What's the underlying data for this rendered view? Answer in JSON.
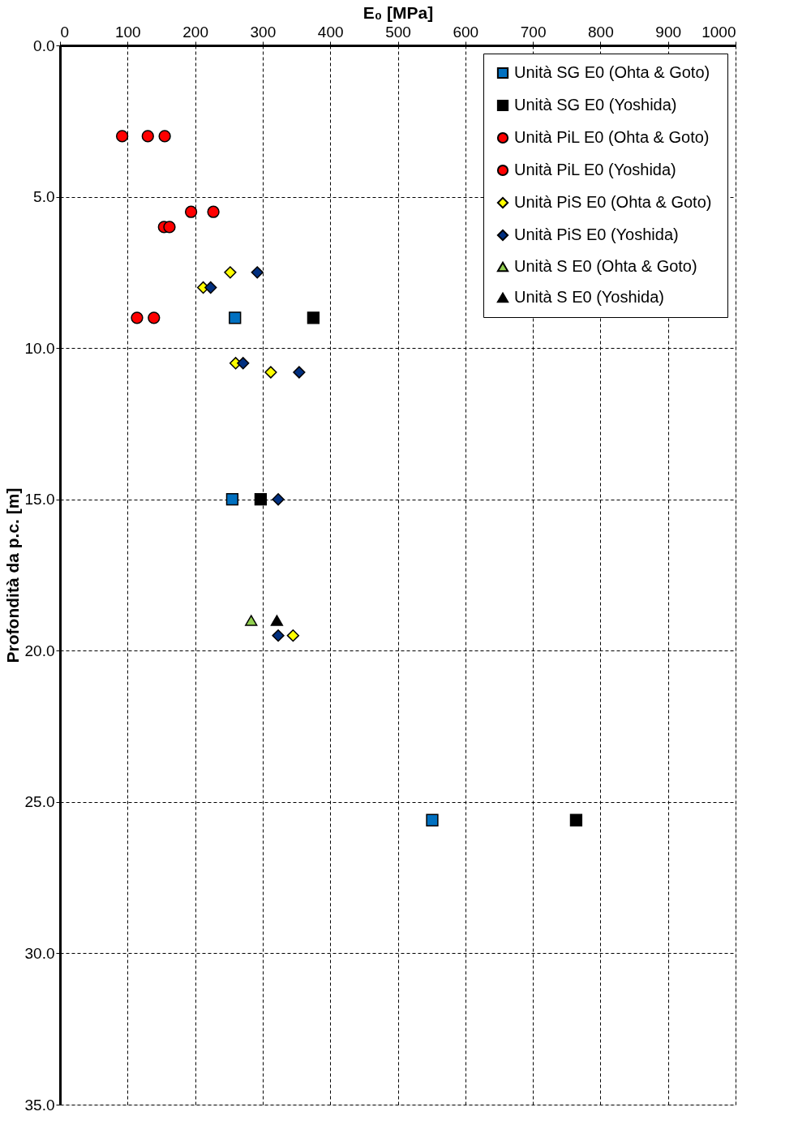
{
  "chart_data": {
    "type": "scatter",
    "xlabel": "E₀ [MPa]",
    "ylabel": "Profondità da p.c. [m]",
    "xlim": [
      0,
      1000
    ],
    "xticks": [
      0,
      100,
      200,
      300,
      400,
      500,
      600,
      700,
      800,
      900,
      1000
    ],
    "ylim": [
      35,
      0
    ],
    "yticks": [
      {
        "value": 0,
        "label": "0.0"
      },
      {
        "value": 5,
        "label": "5.0"
      },
      {
        "value": 10,
        "label": "10.0"
      },
      {
        "value": 15,
        "label": "15.0"
      },
      {
        "value": 20,
        "label": "20.0"
      },
      {
        "value": 25,
        "label": "25.0"
      },
      {
        "value": 30,
        "label": "30.0"
      },
      {
        "value": 35,
        "label": "35.0"
      }
    ],
    "grid": true,
    "legend": "top right",
    "series": [
      {
        "name": "Unità  SG E0 (Ohta & Goto)",
        "color": "#0070c0",
        "marker": "square",
        "x": [
          259,
          255,
          551
        ],
        "values": [
          9.0,
          15.0,
          25.6
        ]
      },
      {
        "name": "Unità  SG E0 (Yoshida)",
        "color": "#000000",
        "marker": "square",
        "x": [
          375,
          297,
          764
        ],
        "values": [
          9.0,
          15.0,
          25.6
        ]
      },
      {
        "name": "Unità  PiL E0 (Ohta & Goto)",
        "color": "#ff0000",
        "marker": "circle",
        "x": [
          130,
          194,
          154,
          139
        ],
        "values": [
          3.0,
          5.5,
          6.0,
          9.0
        ]
      },
      {
        "name": "Unità  PiL E0 (Yoshida)",
        "color": "#ff0000",
        "marker": "circle",
        "x": [
          92,
          155,
          227,
          162,
          114
        ],
        "values": [
          3.0,
          3.0,
          5.5,
          6.0,
          9.0
        ]
      },
      {
        "name": "Unità  PiS E0 (Ohta & Goto)",
        "color": "#ffff00",
        "marker": "diamond",
        "x": [
          252,
          212,
          260,
          312,
          345
        ],
        "values": [
          7.5,
          8.0,
          10.5,
          10.8,
          19.5
        ]
      },
      {
        "name": "Unità  PiS E0 (Yoshida)",
        "color": "#002f7f",
        "marker": "diamond",
        "x": [
          292,
          223,
          271,
          354,
          323,
          323
        ],
        "values": [
          7.5,
          8.0,
          10.5,
          10.8,
          15.0,
          19.5
        ]
      },
      {
        "name": "Unità  S E0 (Ohta & Goto)",
        "color": "#92d050",
        "marker": "triangle",
        "x": [
          283
        ],
        "values": [
          19.0
        ]
      },
      {
        "name": "Unità  S E0 (Yoshida)",
        "color": "#000000",
        "marker": "triangle",
        "x": [
          321
        ],
        "values": [
          19.0
        ]
      }
    ]
  }
}
